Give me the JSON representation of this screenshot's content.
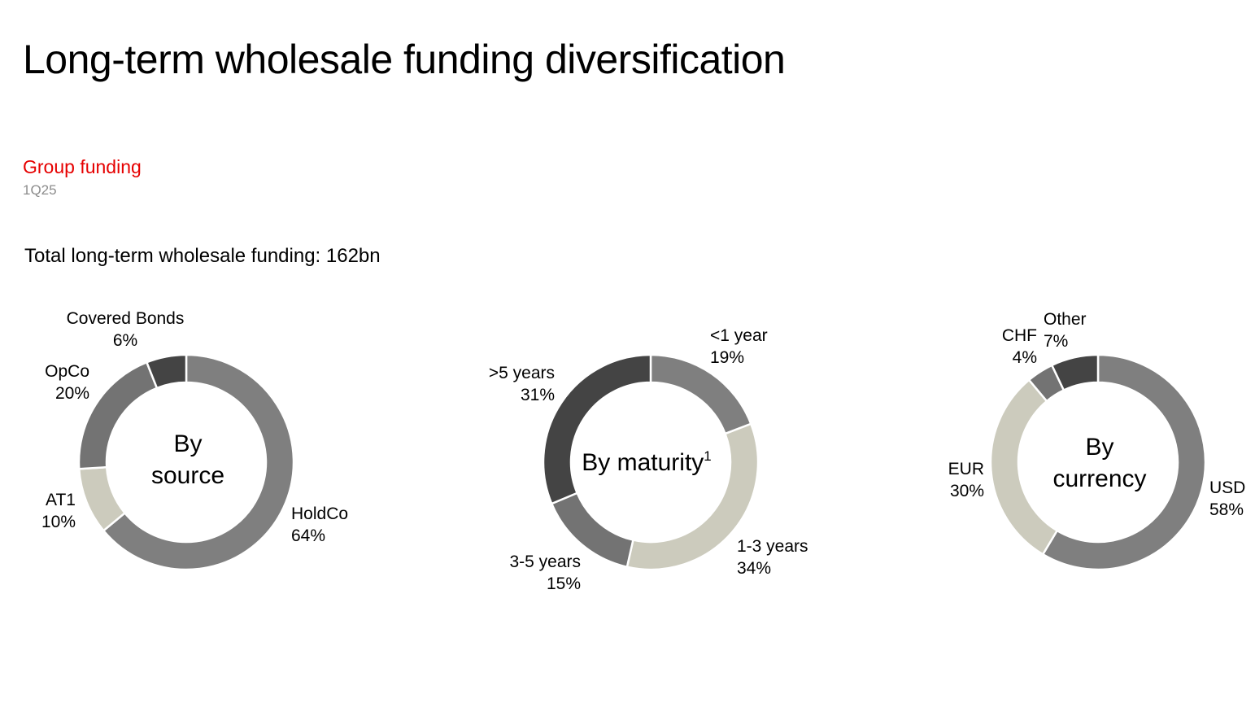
{
  "header": {
    "title": "Long-term wholesale funding diversification",
    "section": "Group funding",
    "period": "1Q25",
    "total": "Total long-term wholesale funding: 162bn"
  },
  "colors": {
    "accent": "#e60000",
    "mid_grey": "#7f7f7f",
    "beige": "#cccbbd",
    "dark_grey": "#737373",
    "darkest": "#444444"
  },
  "chart_data": [
    {
      "type": "pie",
      "center_label": [
        "By",
        "source"
      ],
      "slices": [
        {
          "label": "HoldCo",
          "value": 64,
          "display": "64%",
          "color": "#7f7f7f"
        },
        {
          "label": "AT1",
          "value": 10,
          "display": "10%",
          "color": "#cccbbd"
        },
        {
          "label": "OpCo",
          "value": 20,
          "display": "20%",
          "color": "#737373"
        },
        {
          "label": "Covered Bonds",
          "value": 6,
          "display": "6%",
          "color": "#444444"
        }
      ]
    },
    {
      "type": "pie",
      "center_label": [
        "By maturity"
      ],
      "center_sup": "1",
      "slices": [
        {
          "label": "<1 year",
          "value": 19,
          "display": "19%",
          "color": "#7f7f7f"
        },
        {
          "label": "1-3 years",
          "value": 34,
          "display": "34%",
          "color": "#cccbbd"
        },
        {
          "label": "3-5 years",
          "value": 15,
          "display": "15%",
          "color": "#737373"
        },
        {
          "label": ">5 years",
          "value": 31,
          "display": "31%",
          "color": "#444444"
        }
      ]
    },
    {
      "type": "pie",
      "center_label": [
        "By",
        "currency"
      ],
      "slices": [
        {
          "label": "USD",
          "value": 58,
          "display": "58%",
          "color": "#7f7f7f"
        },
        {
          "label": "EUR",
          "value": 30,
          "display": "30%",
          "color": "#cccbbd"
        },
        {
          "label": "CHF",
          "value": 4,
          "display": "4%",
          "color": "#737373"
        },
        {
          "label": "Other",
          "value": 7,
          "display": "7%",
          "color": "#444444"
        }
      ]
    }
  ]
}
